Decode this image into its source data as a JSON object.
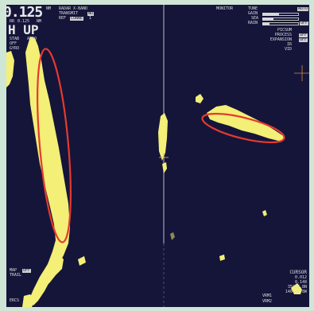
{
  "colors": {
    "background": "#15153a",
    "echo": "#f3ef77",
    "highlight": "#e53a2e",
    "frame": "#cfe6d6"
  },
  "top_left": {
    "range_value": "0.125",
    "range_unit": "NM",
    "rings_label": "RR",
    "rings_value": "0.125",
    "ring_unit": "NM",
    "orientation": "H UP",
    "stab_label": "STAB",
    "auto_label": "AUTO",
    "off_label": "OFF",
    "gyro_label": "GYRO"
  },
  "radar_info": {
    "band": "RADAR X-BAND",
    "transmit": "TRANSMIT",
    "transmit_value": "NO",
    "ref": "REF",
    "ref_value": "CONNE",
    "ref_num": "1"
  },
  "monitor": {
    "label": "MONITOR",
    "tune": "TUNE",
    "tune_mode": "AUTO",
    "gain": "GAIN",
    "gain_level": 0.45,
    "sea": "SEA",
    "sea_level": 0.3,
    "rain": "RAIN",
    "rain_level": 0.2,
    "rain_state": "OFF"
  },
  "settings": [
    {
      "label": "PICSUM",
      "value": ""
    },
    {
      "label": "PROCESS",
      "value": "OFF"
    },
    {
      "label": "EXPANSION",
      "value": "OFF"
    },
    {
      "label": "IR",
      "value": ""
    },
    {
      "label": "VID",
      "value": ""
    }
  ],
  "bottom_left": [
    {
      "label": "MAP",
      "value": "OFF"
    },
    {
      "label": "TRAIL",
      "value": ""
    },
    {
      "label": "",
      "value": ""
    }
  ],
  "bottom_left_bottom": "ERCS",
  "bottom_center": [
    "VRM1",
    "VRM2"
  ],
  "cursor": {
    "label": "CURSOR",
    "line1": "0.012",
    "line2": "0.148",
    "lat": "35°28.8N",
    "lon": "140°27.8W"
  }
}
